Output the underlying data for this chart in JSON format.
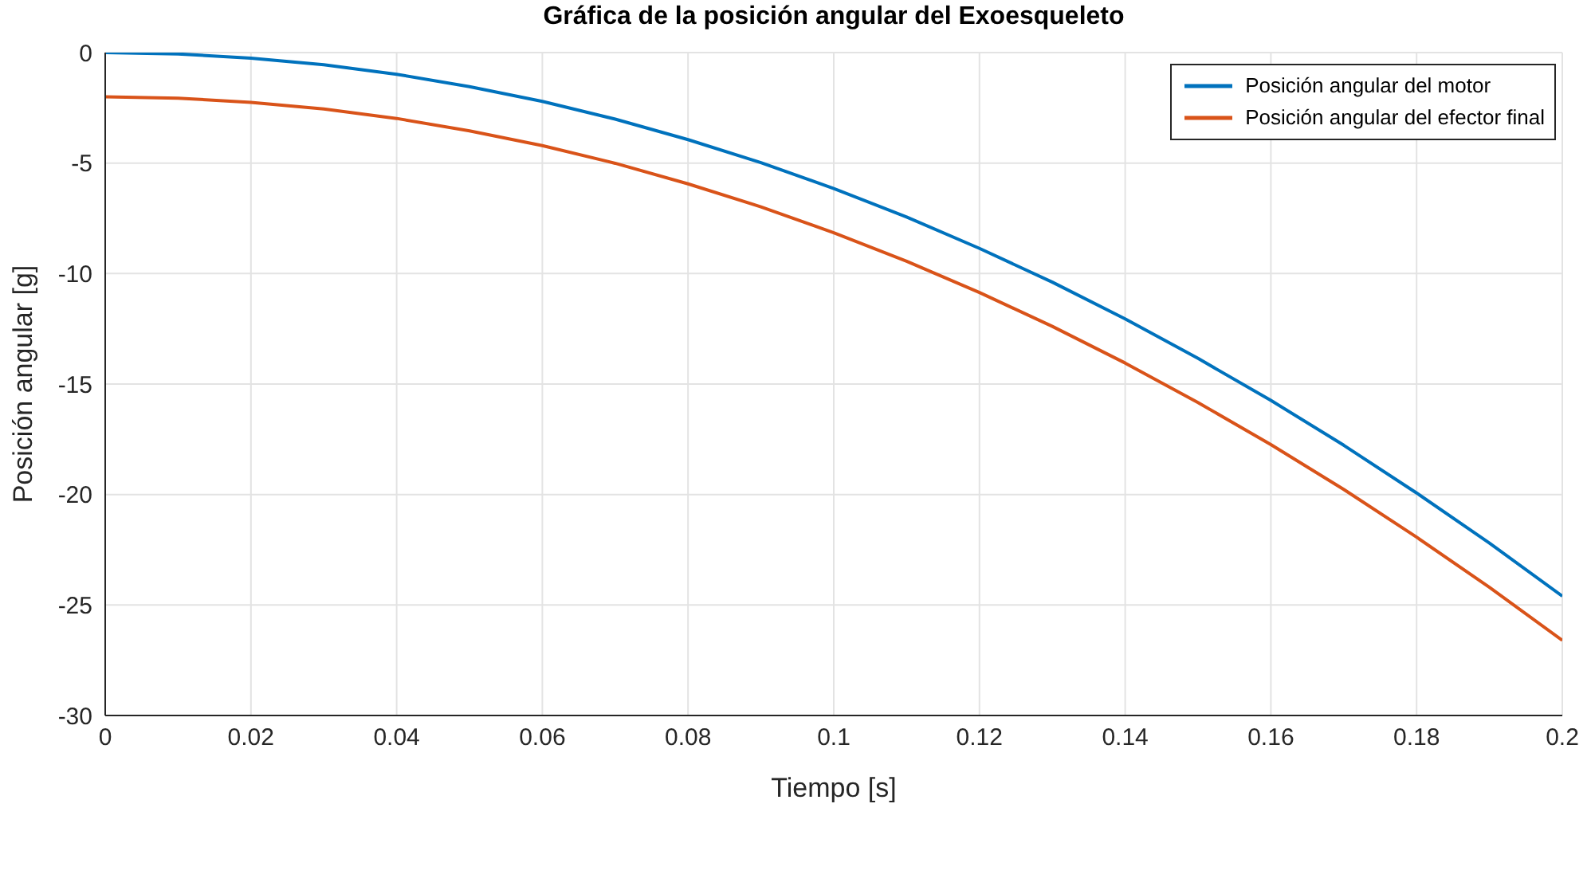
{
  "chart_data": {
    "type": "line",
    "title": "Gráfica de la posición angular del Exoesqueleto",
    "xlabel": "Tiempo [s]",
    "ylabel": "Posición angular [g]",
    "x": [
      0,
      0.01,
      0.02,
      0.03,
      0.04,
      0.05,
      0.06,
      0.07,
      0.08,
      0.09,
      0.1,
      0.11,
      0.12,
      0.13,
      0.14,
      0.15,
      0.16,
      0.17,
      0.18,
      0.19,
      0.2
    ],
    "series": [
      {
        "name": "Posición angular del motor",
        "color": "#0072bd",
        "values": [
          0,
          -0.06,
          -0.25,
          -0.55,
          -0.98,
          -1.54,
          -2.21,
          -3.01,
          -3.94,
          -4.98,
          -6.15,
          -7.44,
          -8.86,
          -10.39,
          -12.05,
          -13.84,
          -15.74,
          -17.77,
          -19.93,
          -22.2,
          -24.6
        ]
      },
      {
        "name": "Posición angular del efector final",
        "color": "#d95319",
        "values": [
          -2,
          -2.06,
          -2.25,
          -2.55,
          -2.98,
          -3.54,
          -4.21,
          -5.01,
          -5.94,
          -6.98,
          -8.15,
          -9.44,
          -10.86,
          -12.39,
          -14.05,
          -15.84,
          -17.74,
          -19.77,
          -21.93,
          -24.2,
          -26.6
        ]
      }
    ],
    "xlim": [
      0,
      0.2
    ],
    "xticks": [
      0,
      0.02,
      0.04,
      0.06,
      0.08,
      0.1,
      0.12,
      0.14,
      0.16,
      0.18,
      0.2
    ],
    "ylim": [
      -30,
      0
    ],
    "yticks": [
      -30,
      -25,
      -20,
      -15,
      -10,
      -5,
      0
    ],
    "grid": true,
    "legend": "top right",
    "marker": "none",
    "line_style": "solid"
  }
}
